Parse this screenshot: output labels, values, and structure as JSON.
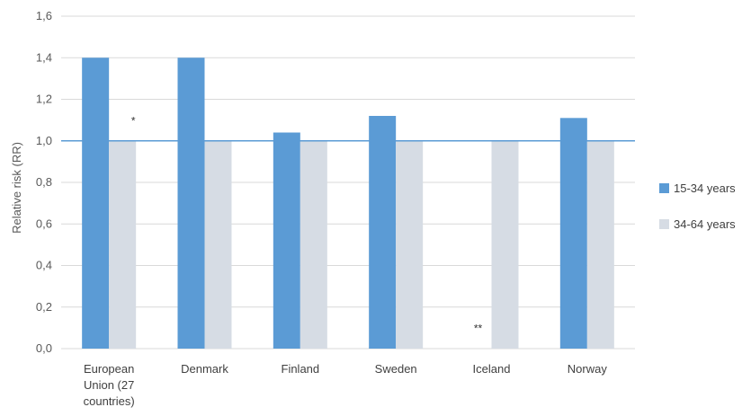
{
  "chart_data": {
    "type": "bar",
    "ylabel": "Relative risk (RR)",
    "ylim": [
      0,
      1.6
    ],
    "yticks": [
      "0,0",
      "0,2",
      "0,4",
      "0,6",
      "0,8",
      "1,0",
      "1,2",
      "1,4",
      "1,6"
    ],
    "ytick_values": [
      0,
      0.2,
      0.4,
      0.6,
      0.8,
      1.0,
      1.2,
      1.4,
      1.6
    ],
    "categories": [
      [
        "European",
        "Union (27",
        "countries)"
      ],
      [
        "Denmark"
      ],
      [
        "Finland"
      ],
      [
        "Sweden"
      ],
      [
        "Iceland"
      ],
      [
        "Norway"
      ]
    ],
    "series": [
      {
        "name": "15-34 years",
        "color": "#5B9BD5",
        "values": [
          1.4,
          1.4,
          1.04,
          1.12,
          0.0,
          1.11
        ]
      },
      {
        "name": "34-64 years",
        "color": "#D6DCE4",
        "values": [
          1.0,
          1.0,
          1.0,
          1.0,
          1.0,
          1.0
        ]
      }
    ],
    "reference_line": {
      "value": 1.0,
      "color": "#5B9BD5"
    },
    "annotations": [
      {
        "text": "*",
        "category_index": 0
      },
      {
        "text": "**",
        "category_index": 4
      }
    ],
    "grid": true,
    "legend_position": "right"
  }
}
